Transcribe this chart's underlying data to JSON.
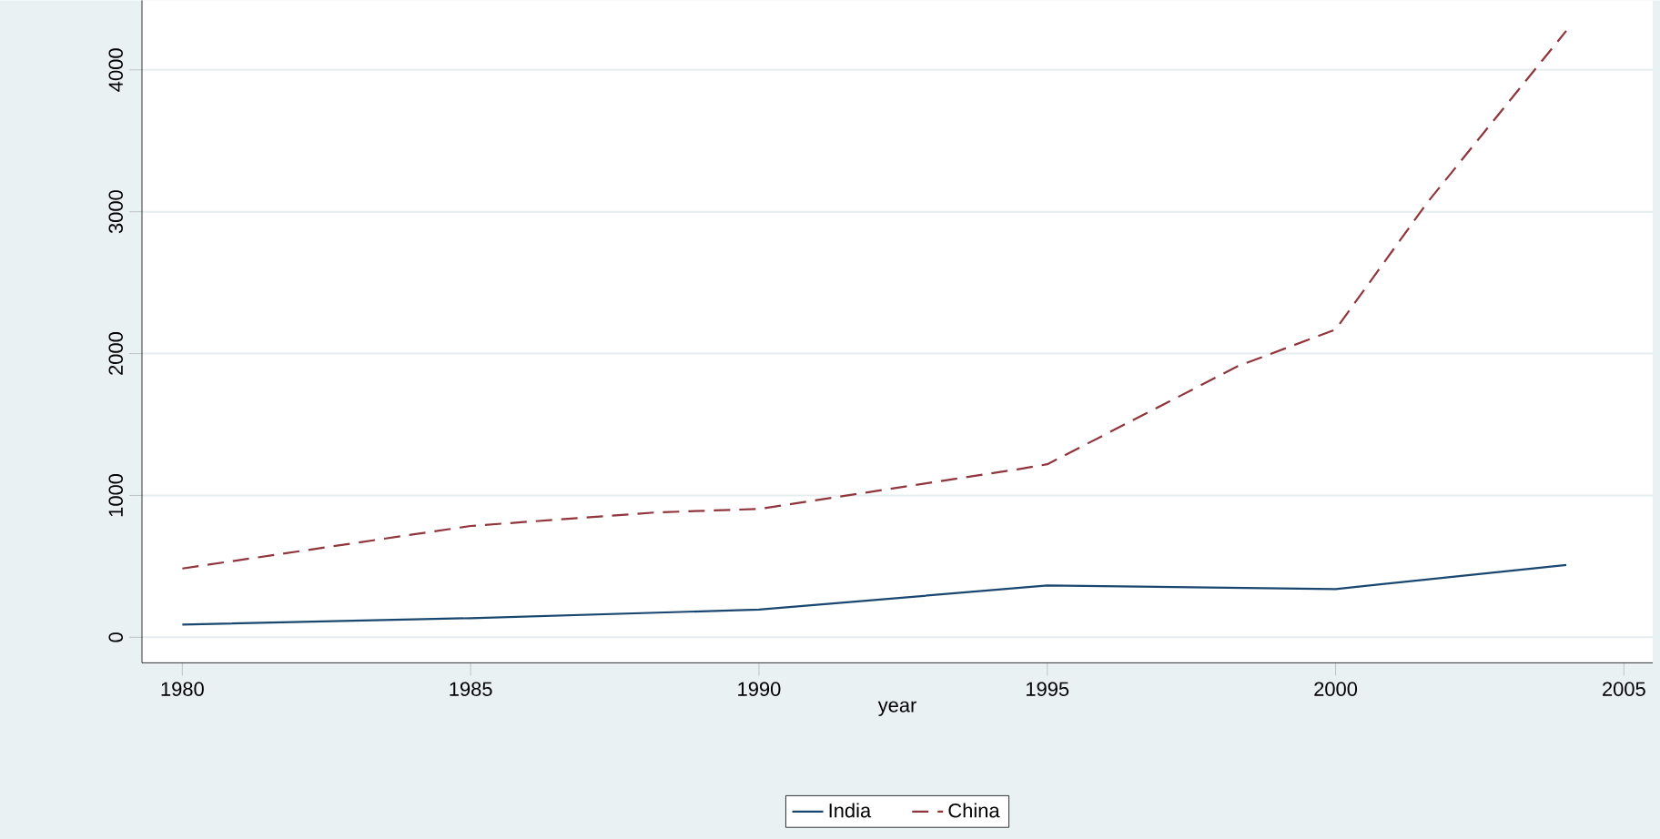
{
  "chart_data": {
    "type": "line",
    "xlabel": "year",
    "xlim": [
      1979.3,
      2005.5
    ],
    "xticks": [
      1980,
      1985,
      1990,
      1995,
      2000,
      2005
    ],
    "ylim": [
      -180,
      4490
    ],
    "yticks": [
      0,
      1000,
      2000,
      3000,
      4000
    ],
    "grid": "y",
    "legend": "bottom",
    "series": [
      {
        "name": "India",
        "color": "#1a476f",
        "line_style": "solid",
        "x": [
          1980,
          1985,
          1990,
          1995,
          2000,
          2004
        ],
        "values": [
          90,
          135,
          195,
          365,
          340,
          510
        ]
      },
      {
        "name": "China",
        "color": "#90353b",
        "line_style": "dashed",
        "x": [
          1980,
          1985,
          1988.2,
          1990,
          1994.5,
          1995,
          1998.3,
          2000,
          2001.6,
          2004
        ],
        "values": [
          485,
          785,
          880,
          905,
          1185,
          1220,
          1910,
          2170,
          3070,
          4275
        ]
      }
    ]
  }
}
